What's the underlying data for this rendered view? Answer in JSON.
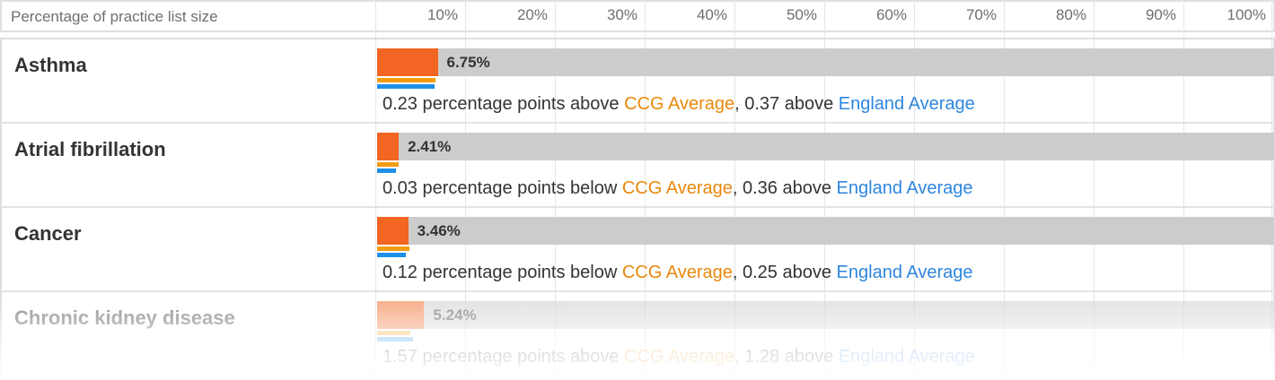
{
  "header": {
    "label": "Percentage of practice list size",
    "ticks": [
      "10%",
      "20%",
      "30%",
      "40%",
      "50%",
      "60%",
      "70%",
      "80%",
      "90%",
      "100%"
    ]
  },
  "chart_data": {
    "type": "bar",
    "title": "",
    "xlabel": "Percentage of practice list size",
    "xlim": [
      0,
      100
    ],
    "categories": [
      "Asthma",
      "Atrial fibrillation",
      "Cancer",
      "Chronic kidney disease"
    ],
    "series": [
      {
        "name": "",
        "values": [
          6.75,
          2.41,
          3.46,
          5.24
        ]
      },
      {
        "name": "CCG Average",
        "values": [
          6.52,
          2.44,
          3.58,
          3.67
        ]
      },
      {
        "name": "England Average",
        "values": [
          6.38,
          2.05,
          3.21,
          3.96
        ]
      }
    ],
    "value_labels": [
      "6.75%",
      "2.41%",
      "3.46%",
      "5.24%"
    ],
    "descriptions": [
      {
        "prefix": "0.23 percentage points above ",
        "ccg": "CCG Average",
        "mid": ", 0.37 above ",
        "eng": "England Average"
      },
      {
        "prefix": "0.03 percentage points below ",
        "ccg": "CCG Average",
        "mid": ", 0.36 above ",
        "eng": "England Average"
      },
      {
        "prefix": "0.12 percentage points below ",
        "ccg": "CCG Average",
        "mid": ", 0.25 above ",
        "eng": "England Average"
      },
      {
        "prefix": "1.57 percentage points above ",
        "ccg": "CCG Average",
        "mid": ", 1.28 above ",
        "eng": "England Average"
      }
    ],
    "grid": true,
    "colors": {
      "value": "#f26522",
      "ccg": "#f39c12",
      "england": "#1e90e8",
      "track": "#cccccc"
    }
  }
}
